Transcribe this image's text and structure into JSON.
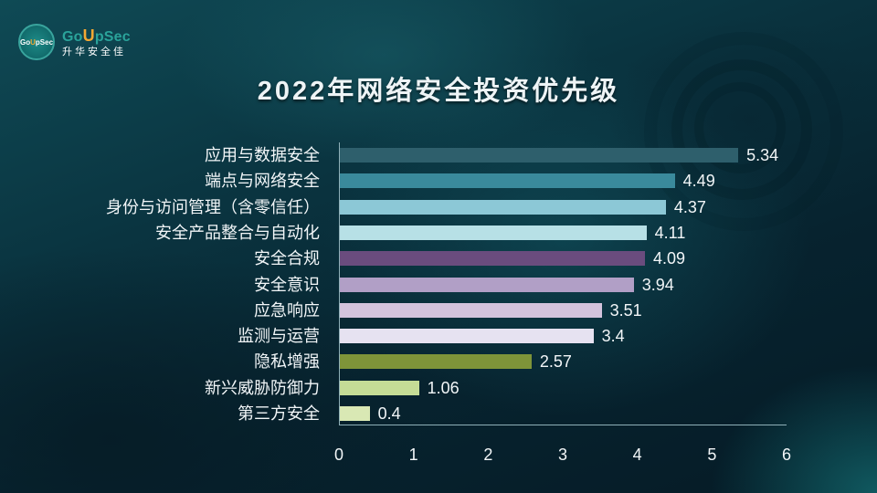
{
  "logo": {
    "badge_text_a": "Go",
    "badge_text_u": "U",
    "badge_text_b": "pSec",
    "name_a": "Go",
    "name_u": "U",
    "name_b": "pSec",
    "subtitle": "升华安全佳"
  },
  "colors": {
    "brand_teal": "#2aa39a",
    "brand_orange": "#f2a833"
  },
  "chart_data": {
    "type": "bar",
    "orientation": "horizontal",
    "title": "2022年网络安全投资优先级",
    "xlabel": "",
    "ylabel": "",
    "xlim": [
      0,
      6
    ],
    "x_ticks": [
      "0",
      "1",
      "2",
      "3",
      "4",
      "5",
      "6"
    ],
    "grid": false,
    "legend": null,
    "data_labels": true,
    "categories": [
      "应用与数据安全",
      "端点与网络安全",
      "身份与访问管理（含零信任）",
      "安全产品整合与自动化",
      "安全合规",
      "安全意识",
      "应急响应",
      "监测与运营",
      "隐私增强",
      "新兴威胁防御力",
      "第三方安全"
    ],
    "values": [
      5.34,
      4.49,
      4.37,
      4.11,
      4.09,
      3.94,
      3.51,
      3.4,
      2.57,
      1.06,
      0.4
    ],
    "value_labels": [
      "5.34",
      "4.49",
      "4.37",
      "4.11",
      "4.09",
      "3.94",
      "3.51",
      "3.4",
      "2.57",
      "1.06",
      "0.4"
    ],
    "bar_colors": [
      "#2e5f6c",
      "#3a8a9c",
      "#8cc8d6",
      "#b7e0e6",
      "#6a4c7e",
      "#b19fc6",
      "#d3c3dc",
      "#e6e2f1",
      "#7e9439",
      "#c5dc96",
      "#d9e8b4"
    ]
  }
}
